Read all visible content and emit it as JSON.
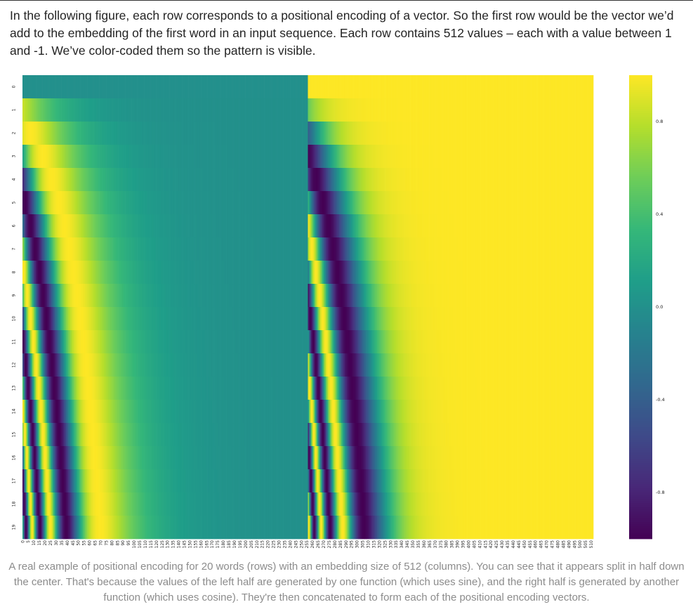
{
  "intro_text": "In the following figure, each row corresponds to a positional encoding of a vector. So the first row would be the vector we’d add to the embedding of the first word in an input sequence. Each row contains 512 values – each with a value between 1 and -1. We’ve color-coded them so the pattern is visible.",
  "caption_text": "A real example of positional encoding for 20 words (rows) with an embedding size of 512 (columns). You can see that it appears split in half down the center. That's because the values of the left half are generated by one function (which uses sine), and the right half is generated by another function (which uses cosine). They're then concatenated to form each of the positional encoding vectors.",
  "chart_data": {
    "type": "heatmap",
    "colormap": "viridis",
    "rows": 20,
    "columns": 512,
    "vmin": -1,
    "vmax": 1,
    "row_tick_labels": [
      "0",
      "1",
      "2",
      "3",
      "4",
      "5",
      "6",
      "7",
      "8",
      "9",
      "10",
      "11",
      "12",
      "13",
      "14",
      "15",
      "16",
      "17",
      "18",
      "19"
    ],
    "column_tick_labels": [
      "0",
      "5",
      "10",
      "15",
      "20",
      "25",
      "30",
      "35",
      "40",
      "45",
      "50",
      "55",
      "60",
      "65",
      "70",
      "75",
      "80",
      "85",
      "90",
      "95",
      "100",
      "105",
      "110",
      "115",
      "120",
      "125",
      "130",
      "135",
      "140",
      "145",
      "150",
      "155",
      "160",
      "165",
      "170",
      "175",
      "180",
      "185",
      "190",
      "195",
      "200",
      "205",
      "210",
      "215",
      "220",
      "225",
      "230",
      "235",
      "240",
      "245",
      "250",
      "255",
      "260",
      "265",
      "270",
      "275",
      "280",
      "285",
      "290",
      "295",
      "300",
      "305",
      "310",
      "315",
      "320",
      "325",
      "330",
      "335",
      "340",
      "345",
      "350",
      "355",
      "360",
      "365",
      "370",
      "375",
      "380",
      "385",
      "390",
      "395",
      "400",
      "405",
      "410",
      "415",
      "420",
      "425",
      "430",
      "435",
      "440",
      "445",
      "450",
      "455",
      "460",
      "465",
      "470",
      "475",
      "480",
      "485",
      "490",
      "495",
      "500",
      "505",
      "510"
    ],
    "colorbar_ticks": [
      {
        "value": 0.8,
        "label": "0.8"
      },
      {
        "value": 0.4,
        "label": "0.4"
      },
      {
        "value": 0.0,
        "label": "0.0"
      },
      {
        "value": -0.4,
        "label": "-0.4"
      },
      {
        "value": -0.8,
        "label": "-0.8"
      }
    ],
    "left_half": "sin(pos / 10000^(i/256)), columns 0-255",
    "right_half": "cos(pos / 10000^(i/256)), columns 256-511",
    "grid": false
  }
}
